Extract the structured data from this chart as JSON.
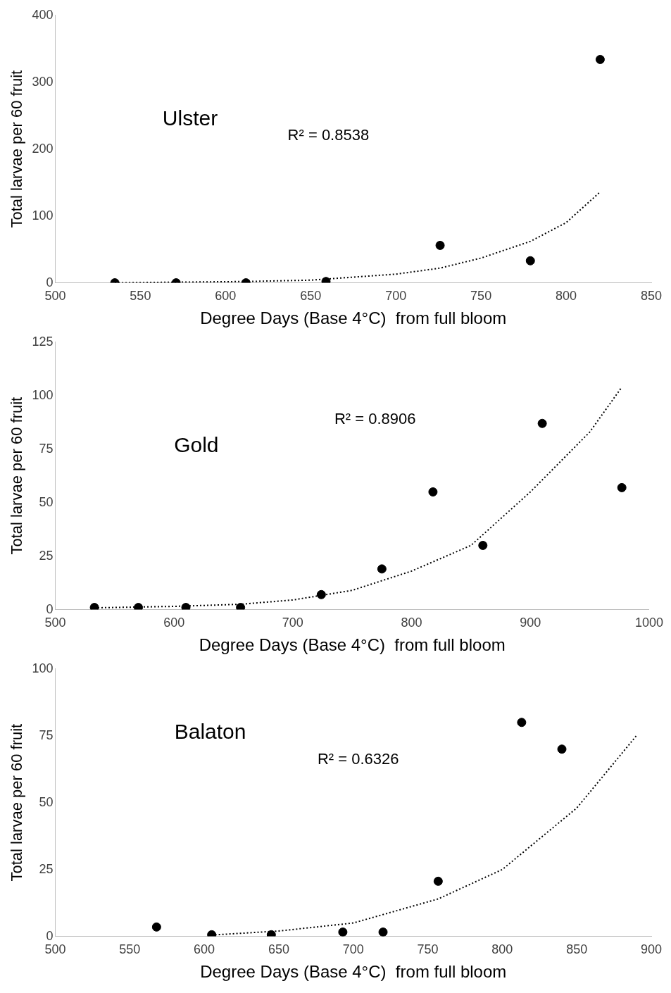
{
  "chart_data": [
    {
      "type": "scatter",
      "xlabel": "Degree Days (Base 4°C)  from full bloom",
      "ylabel": "Total larvae per 60 fruit",
      "annotations": [
        "Ulster",
        "R² = 0.8538"
      ],
      "xlim": [
        500,
        850
      ],
      "xticks": [
        500,
        550,
        600,
        650,
        700,
        750,
        800,
        850
      ],
      "ylim": [
        0,
        400
      ],
      "yticks": [
        0,
        100,
        200,
        300,
        400
      ],
      "grid": false,
      "legend": false,
      "series": [
        {
          "type": "scatter",
          "color": "#000000",
          "marker": "circle",
          "x": [
            535,
            571,
            612,
            659,
            726,
            779,
            820
          ],
          "values": [
            0,
            0,
            0,
            2,
            56,
            33,
            334
          ]
        },
        {
          "type": "line",
          "color": "#000000",
          "marker": "none",
          "line_style": "dotted",
          "x": [
            535,
            571,
            612,
            650,
            700,
            726,
            750,
            779,
            800,
            820
          ],
          "values": [
            0,
            1,
            2,
            4,
            13,
            22,
            37,
            62,
            90,
            136
          ]
        }
      ]
    },
    {
      "type": "scatter",
      "xlabel": "Degree Days (Base 4°C)  from full bloom",
      "ylabel": "Total larvae per 60 fruit",
      "annotations": [
        "Gold",
        "R² = 0.8906"
      ],
      "xlim": [
        500,
        1000
      ],
      "xticks": [
        500,
        600,
        700,
        800,
        900,
        1000
      ],
      "ylim": [
        0,
        125
      ],
      "yticks": [
        0,
        25,
        50,
        75,
        100,
        125
      ],
      "grid": false,
      "legend": false,
      "series": [
        {
          "type": "scatter",
          "color": "#000000",
          "marker": "circle",
          "x": [
            533,
            570,
            610,
            656,
            724,
            775,
            818,
            860,
            910,
            977
          ],
          "values": [
            1,
            1,
            1,
            1,
            7,
            19,
            55,
            30,
            87,
            57
          ]
        },
        {
          "type": "line",
          "color": "#000000",
          "marker": "none",
          "line_style": "dotted",
          "x": [
            530,
            600,
            656,
            700,
            750,
            800,
            850,
            900,
            950,
            977
          ],
          "values": [
            0.8,
            1.5,
            2.5,
            4.5,
            9,
            18,
            30,
            55,
            83,
            104
          ]
        }
      ]
    },
    {
      "type": "scatter",
      "xlabel": "Degree Days (Base 4°C)  from full bloom",
      "ylabel": "Total larvae per 60 fruit",
      "annotations": [
        "Balaton",
        "R² = 0.6326"
      ],
      "xlim": [
        500,
        900
      ],
      "xticks": [
        500,
        550,
        600,
        650,
        700,
        750,
        800,
        850,
        900
      ],
      "ylim": [
        0,
        100
      ],
      "yticks": [
        0,
        25,
        50,
        75,
        100
      ],
      "grid": false,
      "legend": false,
      "series": [
        {
          "type": "scatter",
          "color": "#000000",
          "marker": "circle",
          "x": [
            568,
            605,
            645,
            693,
            720,
            757,
            813,
            840
          ],
          "values": [
            3.5,
            0.6,
            0.6,
            1.6,
            1.6,
            20.6,
            80,
            70
          ]
        },
        {
          "type": "line",
          "color": "#000000",
          "marker": "none",
          "line_style": "dotted",
          "x": [
            605,
            650,
            700,
            757,
            800,
            850,
            890
          ],
          "values": [
            0.5,
            2,
            5,
            14,
            25,
            48,
            75
          ]
        }
      ]
    }
  ]
}
